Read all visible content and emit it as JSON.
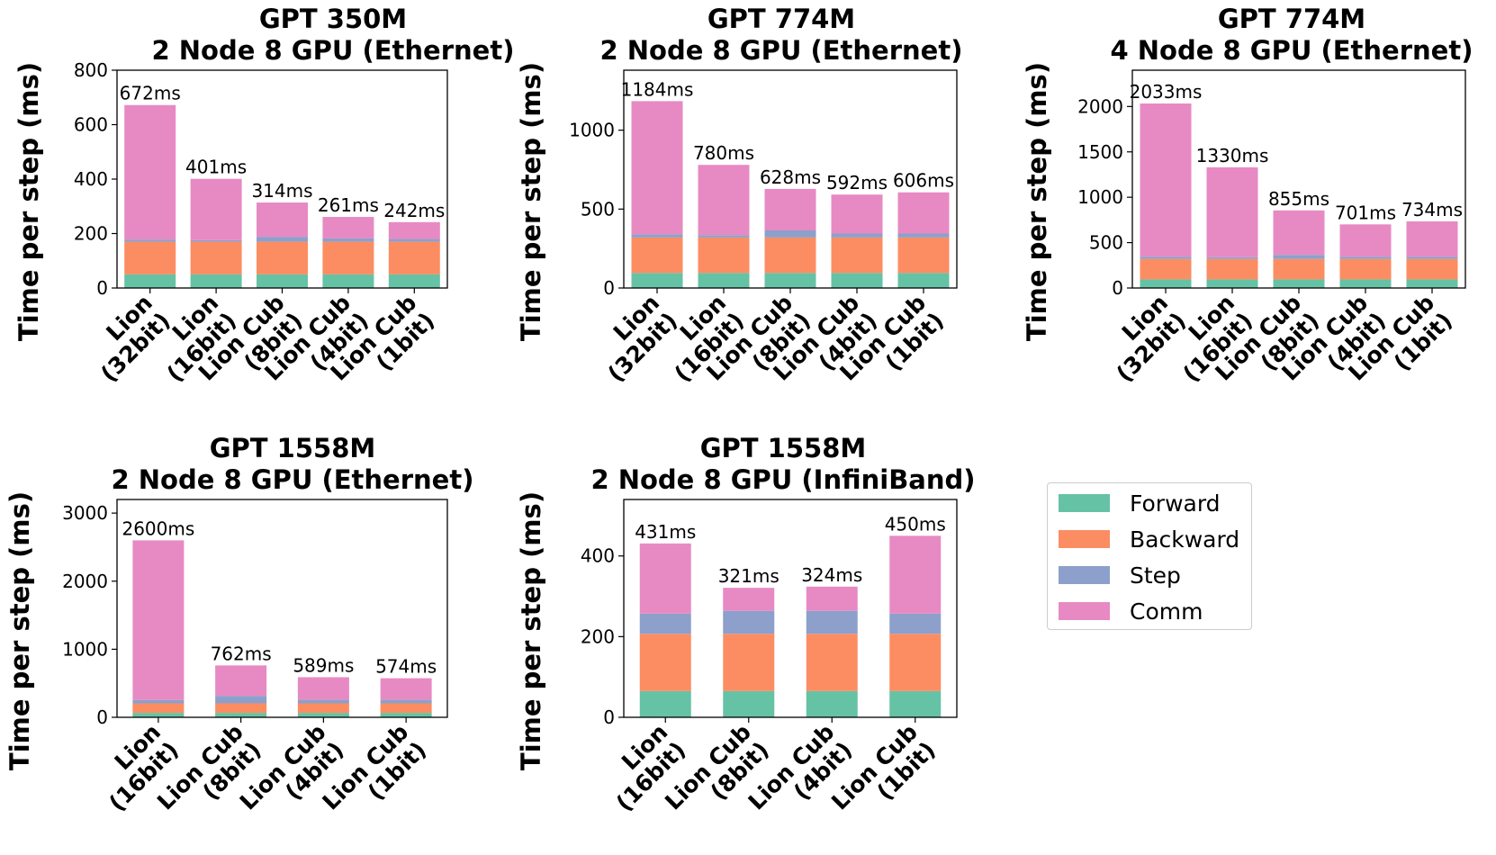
{
  "series_order": [
    "Forward",
    "Backward",
    "Step",
    "Comm"
  ],
  "colors": {
    "Forward": "#66c2a5",
    "Backward": "#fc8d62",
    "Step": "#8da0cb",
    "Comm": "#e78ac3"
  },
  "chart_data": [
    {
      "type": "bar",
      "stacked": true,
      "title": [
        "GPT 350M",
        "2 Node 8 GPU (Ethernet)"
      ],
      "ylabel": "Time per step (ms)",
      "ylim": [
        0,
        800
      ],
      "yticks": [
        0,
        200,
        400,
        600,
        800
      ],
      "categories": [
        [
          "Lion",
          "(32bit)"
        ],
        [
          "Lion",
          "(16bit)"
        ],
        [
          "Lion Cub",
          "(8bit)"
        ],
        [
          "Lion Cub",
          "(4bit)"
        ],
        [
          "Lion Cub",
          "(1bit)"
        ]
      ],
      "series": [
        {
          "name": "Forward",
          "values": [
            50,
            50,
            50,
            50,
            50
          ]
        },
        {
          "name": "Backward",
          "values": [
            120,
            120,
            120,
            120,
            120
          ]
        },
        {
          "name": "Step",
          "values": [
            8,
            6,
            18,
            12,
            10
          ]
        },
        {
          "name": "Comm",
          "values": [
            494,
            225,
            126,
            79,
            62
          ]
        }
      ],
      "totals": [
        "672ms",
        "401ms",
        "314ms",
        "261ms",
        "242ms"
      ]
    },
    {
      "type": "bar",
      "stacked": true,
      "title": [
        "GPT 774M",
        "2 Node 8 GPU (Ethernet)"
      ],
      "ylabel": "Time per step (ms)",
      "ylim": [
        0,
        1380
      ],
      "yticks": [
        0,
        500,
        1000
      ],
      "categories": [
        [
          "Lion",
          "(32bit)"
        ],
        [
          "Lion",
          "(16bit)"
        ],
        [
          "Lion Cub",
          "(8bit)"
        ],
        [
          "Lion Cub",
          "(4bit)"
        ],
        [
          "Lion Cub",
          "(1bit)"
        ]
      ],
      "series": [
        {
          "name": "Forward",
          "values": [
            95,
            95,
            95,
            95,
            95
          ]
        },
        {
          "name": "Backward",
          "values": [
            225,
            225,
            225,
            225,
            225
          ]
        },
        {
          "name": "Step",
          "values": [
            20,
            15,
            45,
            25,
            25
          ]
        },
        {
          "name": "Comm",
          "values": [
            844,
            445,
            263,
            247,
            261
          ]
        }
      ],
      "totals": [
        "1184ms",
        "780ms",
        "628ms",
        "592ms",
        "606ms"
      ]
    },
    {
      "type": "bar",
      "stacked": true,
      "title": [
        "GPT 774M",
        "4 Node 8 GPU (Ethernet)"
      ],
      "ylabel": "Time per step (ms)",
      "ylim": [
        0,
        2400
      ],
      "yticks": [
        0,
        500,
        1000,
        1500,
        2000
      ],
      "categories": [
        [
          "Lion",
          "(32bit)"
        ],
        [
          "Lion",
          "(16bit)"
        ],
        [
          "Lion Cub",
          "(8bit)"
        ],
        [
          "Lion Cub",
          "(4bit)"
        ],
        [
          "Lion Cub",
          "(1bit)"
        ]
      ],
      "series": [
        {
          "name": "Forward",
          "values": [
            95,
            95,
            95,
            95,
            95
          ]
        },
        {
          "name": "Backward",
          "values": [
            225,
            225,
            225,
            225,
            225
          ]
        },
        {
          "name": "Step",
          "values": [
            25,
            20,
            45,
            25,
            25
          ]
        },
        {
          "name": "Comm",
          "values": [
            1688,
            990,
            490,
            356,
            389
          ]
        }
      ],
      "totals": [
        "2033ms",
        "1330ms",
        "855ms",
        "701ms",
        "734ms"
      ]
    },
    {
      "type": "bar",
      "stacked": true,
      "title": [
        "GPT 1558M",
        "2 Node 8 GPU (Ethernet)"
      ],
      "ylabel": "Time per step (ms)",
      "ylim": [
        0,
        3200
      ],
      "yticks": [
        0,
        1000,
        2000,
        3000
      ],
      "categories": [
        [
          "Lion",
          "(16bit)"
        ],
        [
          "Lion Cub",
          "(8bit)"
        ],
        [
          "Lion Cub",
          "(4bit)"
        ],
        [
          "Lion Cub",
          "(1bit)"
        ]
      ],
      "series": [
        {
          "name": "Forward",
          "values": [
            65,
            65,
            65,
            65
          ]
        },
        {
          "name": "Backward",
          "values": [
            140,
            140,
            140,
            140
          ]
        },
        {
          "name": "Step",
          "values": [
            50,
            110,
            55,
            55
          ]
        },
        {
          "name": "Comm",
          "values": [
            2345,
            447,
            329,
            314
          ]
        }
      ],
      "totals": [
        "2600ms",
        "762ms",
        "589ms",
        "574ms"
      ]
    },
    {
      "type": "bar",
      "stacked": true,
      "title": [
        "GPT 1558M",
        "2 Node 8 GPU (InfiniBand)"
      ],
      "ylabel": "Time per step (ms)",
      "ylim": [
        0,
        540
      ],
      "yticks": [
        0,
        200,
        400
      ],
      "categories": [
        [
          "Lion",
          "(16bit)"
        ],
        [
          "Lion Cub",
          "(8bit)"
        ],
        [
          "Lion Cub",
          "(4bit)"
        ],
        [
          "Lion Cub",
          "(1bit)"
        ]
      ],
      "series": [
        {
          "name": "Forward",
          "values": [
            65,
            65,
            65,
            65
          ]
        },
        {
          "name": "Backward",
          "values": [
            142,
            142,
            142,
            142
          ]
        },
        {
          "name": "Step",
          "values": [
            50,
            57,
            57,
            50
          ]
        },
        {
          "name": "Comm",
          "values": [
            174,
            57,
            60,
            193
          ]
        }
      ],
      "totals": [
        "431ms",
        "321ms",
        "324ms",
        "450ms"
      ]
    }
  ]
}
